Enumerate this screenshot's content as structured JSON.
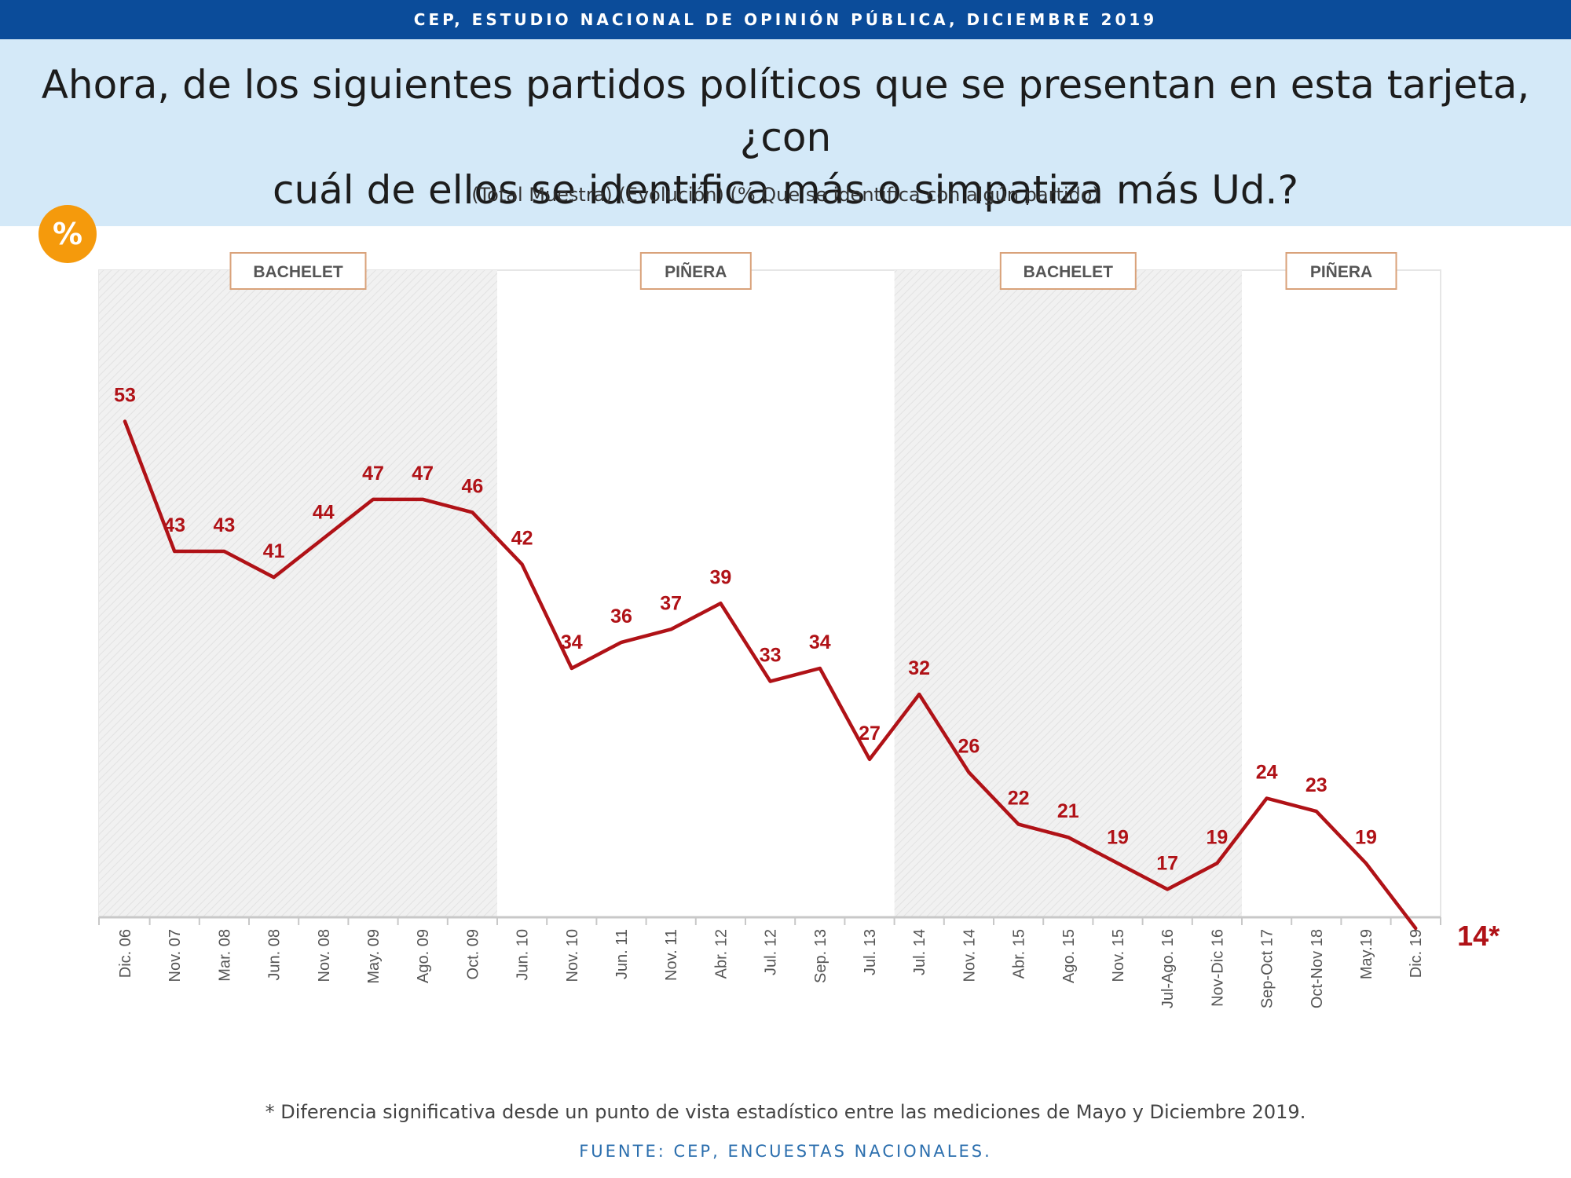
{
  "header": {
    "banner": "CEP, ESTUDIO NACIONAL DE OPINIÓN PÚBLICA, DICIEMBRE 2019"
  },
  "question": {
    "line1": "Ahora, de los siguientes partidos políticos que se presentan en esta tarjeta, ¿con",
    "line2": "cuál de ellos se identifica más o simpatiza más Ud.?",
    "subtitle": "(Total Muestra) (Evolución) (% Que se identifica con algún partido)"
  },
  "badge": {
    "symbol": "%"
  },
  "chart_data": {
    "type": "line",
    "categories": [
      "Dic. 06",
      "Nov. 07",
      "Mar. 08",
      "Jun. 08",
      "Nov. 08",
      "May. 09",
      "Ago. 09",
      "Oct. 09",
      "Jun. 10",
      "Nov. 10",
      "Jun. 11",
      "Nov. 11",
      "Abr. 12",
      "Jul. 12",
      "Sep. 13",
      "Jul. 13",
      "Jul. 14",
      "Nov. 14",
      "Abr. 15",
      "Ago. 15",
      "Nov. 15",
      "Jul-Ago. 16",
      "Nov-Dic 16",
      "Sep-Oct 17",
      "Oct-Nov 18",
      "May.19",
      "Dic. 19"
    ],
    "series": [
      {
        "values": [
          53,
          43,
          43,
          41,
          44,
          47,
          47,
          46,
          42,
          34,
          36,
          37,
          39,
          33,
          34,
          27,
          32,
          26,
          22,
          21,
          19,
          17,
          19,
          24,
          23,
          19,
          14
        ],
        "labels": [
          "53",
          "43",
          "43",
          "41",
          "44",
          "47",
          "47",
          "46",
          "42",
          "34",
          "36",
          "37",
          "39",
          "33",
          "34",
          "27",
          "32",
          "26",
          "22",
          "21",
          "19",
          "17",
          "19",
          "24",
          "23",
          "19",
          "14*"
        ],
        "color": "#b01217"
      }
    ],
    "ylim": [
      0,
      100
    ],
    "periods": [
      {
        "label": "BACHELET",
        "start": "Dic. 06",
        "end": "Oct. 09",
        "shaded": true
      },
      {
        "label": "PIÑERA",
        "start": "Jun. 10",
        "end": "Jul. 13",
        "shaded": false
      },
      {
        "label": "BACHELET",
        "start": "Jul. 14",
        "end": "Nov-Dic 16",
        "shaded": true
      },
      {
        "label": "PIÑERA",
        "start": "Sep-Oct 17",
        "end": "Dic. 19",
        "shaded": false
      }
    ],
    "grid": false,
    "colors": {
      "line": "#b01217",
      "shade": "#f1f1f1",
      "axis": "#c8c8c8",
      "period_border": "#d9a27a"
    }
  },
  "footnote": "* Diferencia significativa desde un punto de vista estadístico entre las mediciones de Mayo y Diciembre 2019.",
  "source": "FUENTE: CEP, ENCUESTAS NACIONALES."
}
